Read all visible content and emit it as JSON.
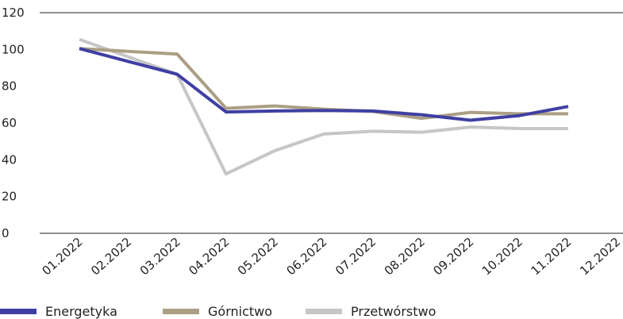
{
  "chart_data": {
    "type": "line",
    "categories": [
      "01.2022",
      "02.2022",
      "03.2022",
      "04.2022",
      "05.2022",
      "06.2022",
      "07.2022",
      "08.2022",
      "09.2022",
      "10.2022",
      "11.2022",
      "12.2022"
    ],
    "ylim": [
      0,
      120
    ],
    "yticks": [
      0,
      20,
      40,
      60,
      80,
      100,
      120
    ],
    "title": "",
    "xlabel": "",
    "ylabel": "",
    "grid": "top axis line only",
    "legend_position": "bottom-left",
    "series": [
      {
        "name": "Energetyka",
        "color": "#3f3fa3",
        "values": [
          100.5,
          93.5,
          86.5,
          66.0,
          66.5,
          66.8,
          66.5,
          64.5,
          61.5,
          64.0,
          69.0,
          null
        ]
      },
      {
        "name": "Górnictwo",
        "color": "#ab9f84",
        "values": [
          100.5,
          99.0,
          97.5,
          68.0,
          69.3,
          67.5,
          66.3,
          62.5,
          65.8,
          65.0,
          65.0,
          null
        ]
      },
      {
        "name": "Przetwórstwo",
        "color": "#c6c6c6",
        "values": [
          105.5,
          96.0,
          86.5,
          32.3,
          45.0,
          54.0,
          55.5,
          55.0,
          57.8,
          57.0,
          57.0,
          null
        ]
      }
    ]
  }
}
